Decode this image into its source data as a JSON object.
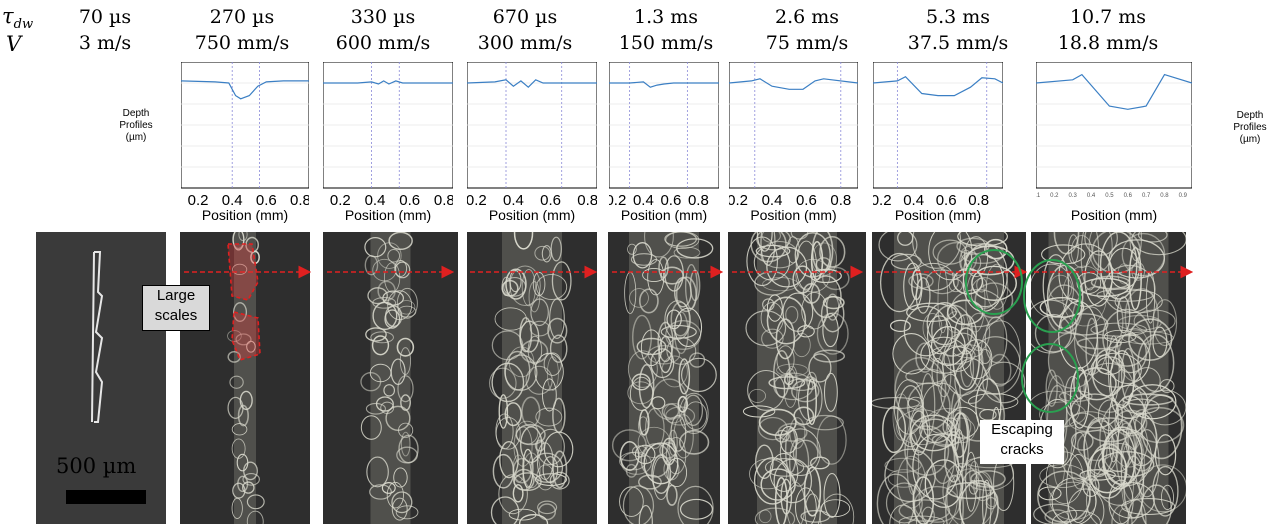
{
  "header": {
    "tau_symbol": "τ",
    "tau_sub": "dw",
    "v_symbol": "V",
    "columns": [
      {
        "tau": "70 µs",
        "v": "3 m/s"
      },
      {
        "tau": "270 µs",
        "v": "750 mm/s"
      },
      {
        "tau": "330 µs",
        "v": "600 mm/s"
      },
      {
        "tau": "670 µs",
        "v": "300 mm/s"
      },
      {
        "tau": "1.3 ms",
        "v": "150 mm/s"
      },
      {
        "tau": "2.6 ms",
        "v": "75 mm/s"
      },
      {
        "tau": "5.3 ms",
        "v": "37.5 mm/s"
      },
      {
        "tau": "10.7 ms",
        "v": "18.8 mm/s"
      }
    ]
  },
  "depth_label": "Depth Profiles (µm)",
  "callouts": {
    "large_scales": "Large scales",
    "escaping_cracks": "Escaping cracks"
  },
  "scale_bar": "500 µm",
  "colors": {
    "profile_line": "#3b7fc4",
    "arrow": "#e02020",
    "scale_outline": "#e02020",
    "crack_circle": "#2aa050"
  },
  "chart_data": [
    {
      "type": "line",
      "xlabel": "Position (mm)",
      "ylim": [
        -100,
        20
      ],
      "xlim": [
        0.1,
        0.85
      ],
      "yticks": [
        20,
        0,
        -20,
        -40,
        -60,
        -80,
        -100
      ],
      "xticks": [
        0.2,
        0.4,
        0.6,
        0.8
      ],
      "vlines": [
        0.4,
        0.56
      ],
      "x": [
        0.1,
        0.3,
        0.38,
        0.42,
        0.45,
        0.5,
        0.55,
        0.6,
        0.7,
        0.85
      ],
      "y": [
        2,
        1,
        0,
        -12,
        -15,
        -12,
        -3,
        1,
        2,
        2
      ]
    },
    {
      "type": "line",
      "xlabel": "Position (mm)",
      "ylim": [
        -100,
        20
      ],
      "xlim": [
        0.1,
        0.85
      ],
      "xticks": [
        0.2,
        0.4,
        0.6,
        0.8
      ],
      "vlines": [
        0.38,
        0.54
      ],
      "x": [
        0.1,
        0.3,
        0.38,
        0.42,
        0.45,
        0.48,
        0.52,
        0.56,
        0.6,
        0.85
      ],
      "y": [
        0,
        0,
        1,
        -1,
        2,
        -1,
        2,
        0,
        0,
        0
      ]
    },
    {
      "type": "line",
      "xlabel": "Position (mm)",
      "ylim": [
        -100,
        20
      ],
      "xlim": [
        0.15,
        0.85
      ],
      "xticks": [
        0.2,
        0.4,
        0.6,
        0.8
      ],
      "vlines": [
        0.36,
        0.66
      ],
      "x": [
        0.15,
        0.3,
        0.36,
        0.4,
        0.44,
        0.48,
        0.52,
        0.56,
        0.6,
        0.85
      ],
      "y": [
        0,
        1,
        3,
        -3,
        2,
        -4,
        3,
        0,
        0,
        0
      ]
    },
    {
      "type": "line",
      "xlabel": "Position (mm)",
      "ylim": [
        -100,
        20
      ],
      "xlim": [
        0.15,
        0.95
      ],
      "xticks": [
        0.2,
        0.4,
        0.6,
        0.8
      ],
      "vlines": [
        0.3,
        0.72
      ],
      "x": [
        0.15,
        0.3,
        0.4,
        0.45,
        0.5,
        0.55,
        0.62,
        0.7,
        0.95
      ],
      "y": [
        0,
        0,
        1,
        -4,
        -2,
        -1,
        0,
        0,
        0
      ]
    },
    {
      "type": "line",
      "xlabel": "Position (mm)",
      "ylim": [
        -100,
        20
      ],
      "xlim": [
        0.15,
        0.9
      ],
      "xticks": [
        0.2,
        0.4,
        0.6,
        0.8
      ],
      "vlines": [
        0.3,
        0.8
      ],
      "x": [
        0.15,
        0.28,
        0.33,
        0.4,
        0.5,
        0.58,
        0.65,
        0.7,
        0.9
      ],
      "y": [
        0,
        2,
        4,
        -3,
        -6,
        -6,
        2,
        4,
        0
      ]
    },
    {
      "type": "line",
      "xlabel": "Position (mm)",
      "ylim": [
        -100,
        20
      ],
      "xlim": [
        0.15,
        0.95
      ],
      "xticks": [
        0.2,
        0.4,
        0.6,
        0.8
      ],
      "vlines": [
        0.3,
        0.85
      ],
      "x": [
        0.15,
        0.3,
        0.35,
        0.45,
        0.55,
        0.65,
        0.75,
        0.82,
        0.9,
        0.95
      ],
      "y": [
        0,
        2,
        6,
        -10,
        -12,
        -12,
        -4,
        5,
        4,
        0
      ]
    },
    {
      "type": "line",
      "xlabel": "Position (mm)",
      "ylim": [
        -100,
        20
      ],
      "xlim": [
        0.1,
        0.95
      ],
      "xticks": [
        0.1,
        0.2,
        0.3,
        0.4,
        0.5,
        0.6,
        0.7,
        0.8,
        0.9
      ],
      "x": [
        0.1,
        0.3,
        0.35,
        0.5,
        0.6,
        0.7,
        0.8,
        0.95
      ],
      "y": [
        0,
        3,
        8,
        -22,
        -25,
        -22,
        8,
        0
      ]
    }
  ]
}
